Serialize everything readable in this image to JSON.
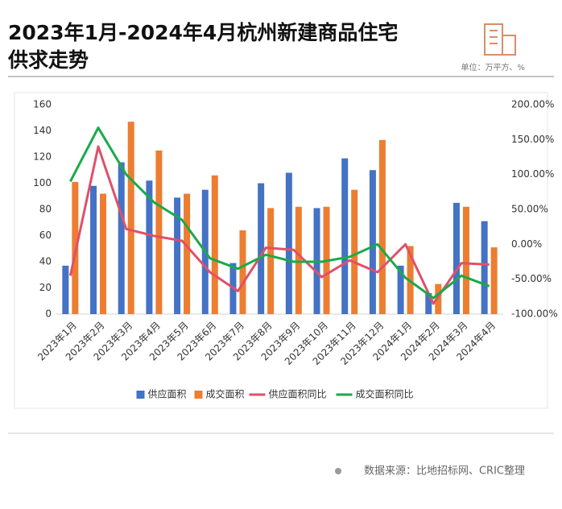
{
  "chart_data": {
    "type": "bar-line",
    "title": [
      "2023年1月-2024年4月杭州新建商品住宅",
      "供求走势"
    ],
    "unit": "单位：万平方、%",
    "source": "数据来源：比地招标网、CRIC整理",
    "categories": [
      "2023年1月",
      "2023年2月",
      "2023年3月",
      "2023年4月",
      "2023年5月",
      "2023年6月",
      "2023年7月",
      "2023年8月",
      "2023年9月",
      "2023年10月",
      "2023年11月",
      "2023年12月",
      "2024年1月",
      "2024年2月",
      "2024年3月",
      "2024年4月"
    ],
    "series": [
      {
        "name": "供应面积",
        "type": "bar",
        "color": "#4472c4",
        "values": [
          37,
          98,
          116,
          102,
          89,
          95,
          39,
          100,
          108,
          81,
          119,
          110,
          37,
          16,
          85,
          71
        ]
      },
      {
        "name": "成交面积",
        "type": "bar",
        "color": "#ed7d31",
        "values": [
          101,
          92,
          147,
          125,
          92,
          106,
          64,
          81,
          82,
          82,
          95,
          133,
          52,
          23,
          82,
          51
        ]
      },
      {
        "name": "供应面积同比",
        "type": "line",
        "axis": "y2",
        "color": "#e0506a",
        "values": [
          -45,
          140,
          22,
          12,
          5,
          -40,
          -67,
          -5,
          -8,
          -47,
          -23,
          -40,
          0,
          -85,
          -27,
          -29
        ]
      },
      {
        "name": "成交面积同比",
        "type": "line",
        "axis": "y2",
        "color": "#1aaa4a",
        "values": [
          90,
          167,
          100,
          60,
          35,
          -20,
          -35,
          -15,
          -25,
          -25,
          -18,
          0,
          -48,
          -77,
          -45,
          -60
        ]
      }
    ],
    "ylim": [
      0,
      160
    ],
    "yticks": [
      0,
      20,
      40,
      60,
      80,
      100,
      120,
      140,
      160
    ],
    "y2lim": [
      -100,
      200
    ],
    "y2ticks": [
      {
        "value": -100,
        "label": "-100.00%"
      },
      {
        "value": -50,
        "label": "-50.00%"
      },
      {
        "value": 0,
        "label": "0.00%"
      },
      {
        "value": 50,
        "label": "50.00%"
      },
      {
        "value": 100,
        "label": "100.00%"
      },
      {
        "value": 150,
        "label": "150.00%"
      },
      {
        "value": 200,
        "label": "200.00%"
      }
    ],
    "legend": "bottom"
  }
}
